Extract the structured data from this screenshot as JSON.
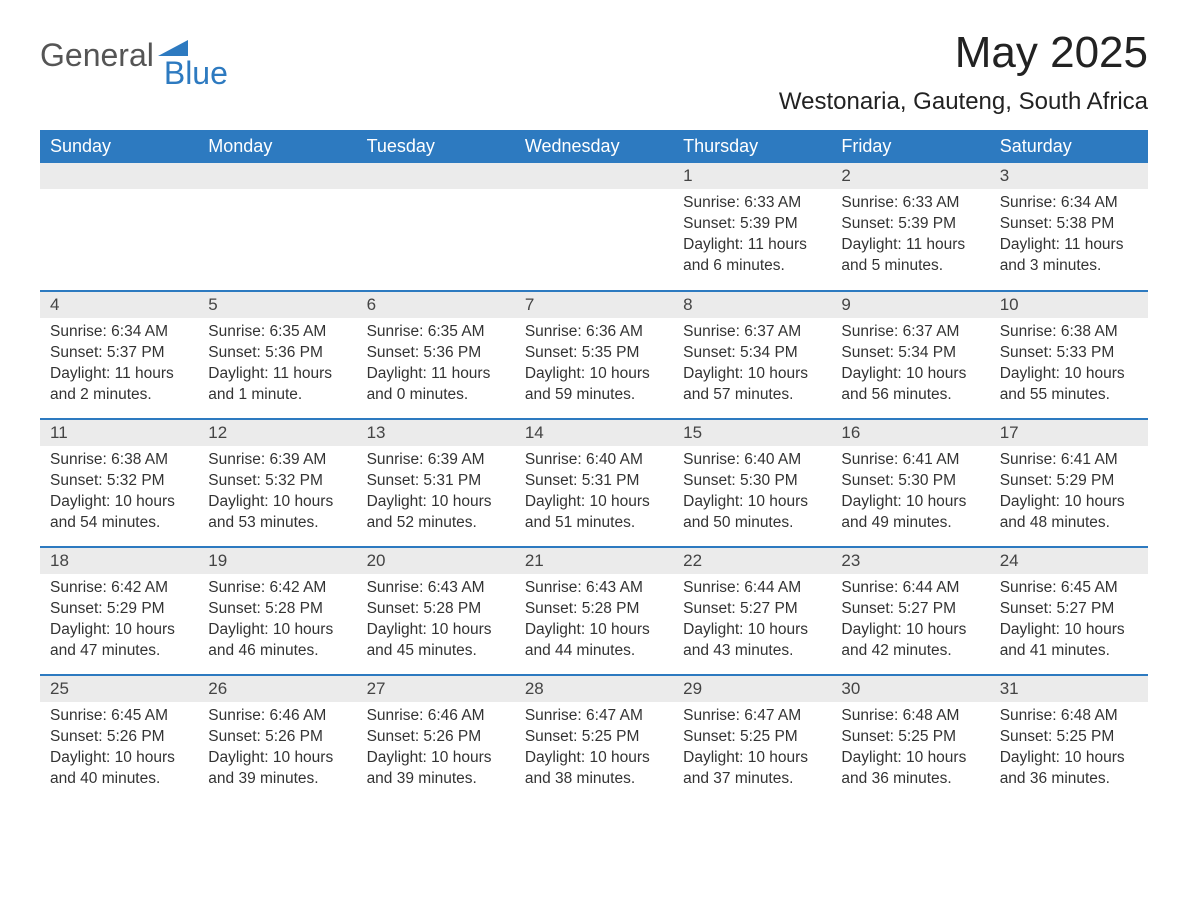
{
  "logo": {
    "text1": "General",
    "text2": "Blue",
    "mark_color": "#2d7ac0"
  },
  "title": "May 2025",
  "location": "Westonaria, Gauteng, South Africa",
  "colors": {
    "header_bg": "#2d7ac0",
    "header_text": "#ffffff",
    "daynum_bg": "#ebebeb",
    "body_text": "#333333",
    "rule": "#2d7ac0"
  },
  "weekdays": [
    "Sunday",
    "Monday",
    "Tuesday",
    "Wednesday",
    "Thursday",
    "Friday",
    "Saturday"
  ],
  "weeks": [
    [
      null,
      null,
      null,
      null,
      {
        "n": "1",
        "sunrise": "Sunrise: 6:33 AM",
        "sunset": "Sunset: 5:39 PM",
        "daylight": "Daylight: 11 hours and 6 minutes."
      },
      {
        "n": "2",
        "sunrise": "Sunrise: 6:33 AM",
        "sunset": "Sunset: 5:39 PM",
        "daylight": "Daylight: 11 hours and 5 minutes."
      },
      {
        "n": "3",
        "sunrise": "Sunrise: 6:34 AM",
        "sunset": "Sunset: 5:38 PM",
        "daylight": "Daylight: 11 hours and 3 minutes."
      }
    ],
    [
      {
        "n": "4",
        "sunrise": "Sunrise: 6:34 AM",
        "sunset": "Sunset: 5:37 PM",
        "daylight": "Daylight: 11 hours and 2 minutes."
      },
      {
        "n": "5",
        "sunrise": "Sunrise: 6:35 AM",
        "sunset": "Sunset: 5:36 PM",
        "daylight": "Daylight: 11 hours and 1 minute."
      },
      {
        "n": "6",
        "sunrise": "Sunrise: 6:35 AM",
        "sunset": "Sunset: 5:36 PM",
        "daylight": "Daylight: 11 hours and 0 minutes."
      },
      {
        "n": "7",
        "sunrise": "Sunrise: 6:36 AM",
        "sunset": "Sunset: 5:35 PM",
        "daylight": "Daylight: 10 hours and 59 minutes."
      },
      {
        "n": "8",
        "sunrise": "Sunrise: 6:37 AM",
        "sunset": "Sunset: 5:34 PM",
        "daylight": "Daylight: 10 hours and 57 minutes."
      },
      {
        "n": "9",
        "sunrise": "Sunrise: 6:37 AM",
        "sunset": "Sunset: 5:34 PM",
        "daylight": "Daylight: 10 hours and 56 minutes."
      },
      {
        "n": "10",
        "sunrise": "Sunrise: 6:38 AM",
        "sunset": "Sunset: 5:33 PM",
        "daylight": "Daylight: 10 hours and 55 minutes."
      }
    ],
    [
      {
        "n": "11",
        "sunrise": "Sunrise: 6:38 AM",
        "sunset": "Sunset: 5:32 PM",
        "daylight": "Daylight: 10 hours and 54 minutes."
      },
      {
        "n": "12",
        "sunrise": "Sunrise: 6:39 AM",
        "sunset": "Sunset: 5:32 PM",
        "daylight": "Daylight: 10 hours and 53 minutes."
      },
      {
        "n": "13",
        "sunrise": "Sunrise: 6:39 AM",
        "sunset": "Sunset: 5:31 PM",
        "daylight": "Daylight: 10 hours and 52 minutes."
      },
      {
        "n": "14",
        "sunrise": "Sunrise: 6:40 AM",
        "sunset": "Sunset: 5:31 PM",
        "daylight": "Daylight: 10 hours and 51 minutes."
      },
      {
        "n": "15",
        "sunrise": "Sunrise: 6:40 AM",
        "sunset": "Sunset: 5:30 PM",
        "daylight": "Daylight: 10 hours and 50 minutes."
      },
      {
        "n": "16",
        "sunrise": "Sunrise: 6:41 AM",
        "sunset": "Sunset: 5:30 PM",
        "daylight": "Daylight: 10 hours and 49 minutes."
      },
      {
        "n": "17",
        "sunrise": "Sunrise: 6:41 AM",
        "sunset": "Sunset: 5:29 PM",
        "daylight": "Daylight: 10 hours and 48 minutes."
      }
    ],
    [
      {
        "n": "18",
        "sunrise": "Sunrise: 6:42 AM",
        "sunset": "Sunset: 5:29 PM",
        "daylight": "Daylight: 10 hours and 47 minutes."
      },
      {
        "n": "19",
        "sunrise": "Sunrise: 6:42 AM",
        "sunset": "Sunset: 5:28 PM",
        "daylight": "Daylight: 10 hours and 46 minutes."
      },
      {
        "n": "20",
        "sunrise": "Sunrise: 6:43 AM",
        "sunset": "Sunset: 5:28 PM",
        "daylight": "Daylight: 10 hours and 45 minutes."
      },
      {
        "n": "21",
        "sunrise": "Sunrise: 6:43 AM",
        "sunset": "Sunset: 5:28 PM",
        "daylight": "Daylight: 10 hours and 44 minutes."
      },
      {
        "n": "22",
        "sunrise": "Sunrise: 6:44 AM",
        "sunset": "Sunset: 5:27 PM",
        "daylight": "Daylight: 10 hours and 43 minutes."
      },
      {
        "n": "23",
        "sunrise": "Sunrise: 6:44 AM",
        "sunset": "Sunset: 5:27 PM",
        "daylight": "Daylight: 10 hours and 42 minutes."
      },
      {
        "n": "24",
        "sunrise": "Sunrise: 6:45 AM",
        "sunset": "Sunset: 5:27 PM",
        "daylight": "Daylight: 10 hours and 41 minutes."
      }
    ],
    [
      {
        "n": "25",
        "sunrise": "Sunrise: 6:45 AM",
        "sunset": "Sunset: 5:26 PM",
        "daylight": "Daylight: 10 hours and 40 minutes."
      },
      {
        "n": "26",
        "sunrise": "Sunrise: 6:46 AM",
        "sunset": "Sunset: 5:26 PM",
        "daylight": "Daylight: 10 hours and 39 minutes."
      },
      {
        "n": "27",
        "sunrise": "Sunrise: 6:46 AM",
        "sunset": "Sunset: 5:26 PM",
        "daylight": "Daylight: 10 hours and 39 minutes."
      },
      {
        "n": "28",
        "sunrise": "Sunrise: 6:47 AM",
        "sunset": "Sunset: 5:25 PM",
        "daylight": "Daylight: 10 hours and 38 minutes."
      },
      {
        "n": "29",
        "sunrise": "Sunrise: 6:47 AM",
        "sunset": "Sunset: 5:25 PM",
        "daylight": "Daylight: 10 hours and 37 minutes."
      },
      {
        "n": "30",
        "sunrise": "Sunrise: 6:48 AM",
        "sunset": "Sunset: 5:25 PM",
        "daylight": "Daylight: 10 hours and 36 minutes."
      },
      {
        "n": "31",
        "sunrise": "Sunrise: 6:48 AM",
        "sunset": "Sunset: 5:25 PM",
        "daylight": "Daylight: 10 hours and 36 minutes."
      }
    ]
  ]
}
